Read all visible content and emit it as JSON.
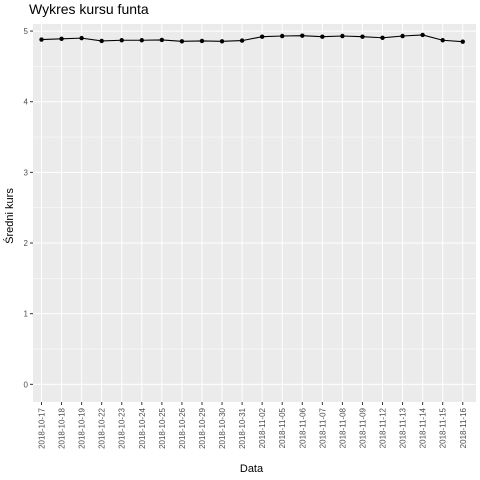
{
  "chart_data": {
    "type": "line",
    "title": "Wykres kursu funta",
    "xlabel": "Data",
    "ylabel": "Średni kurs",
    "ylim": [
      -0.25,
      5.1
    ],
    "yticks": [
      0,
      1,
      2,
      3,
      4,
      5
    ],
    "grid": true,
    "legend": "none",
    "colors": {
      "panel": "#ebebeb",
      "grid": "#ffffff",
      "line": "#000000"
    },
    "x": [
      "2018-10-17",
      "2018-10-18",
      "2018-10-19",
      "2018-10-22",
      "2018-10-23",
      "2018-10-24",
      "2018-10-25",
      "2018-10-26",
      "2018-10-29",
      "2018-10-30",
      "2018-10-31",
      "2018-11-02",
      "2018-11-05",
      "2018-11-06",
      "2018-11-07",
      "2018-11-08",
      "2018-11-09",
      "2018-11-12",
      "2018-11-13",
      "2018-11-14",
      "2018-11-15",
      "2018-11-16"
    ],
    "values": [
      4.88,
      4.89,
      4.9,
      4.86,
      4.87,
      4.87,
      4.875,
      4.855,
      4.86,
      4.855,
      4.865,
      4.92,
      4.93,
      4.935,
      4.92,
      4.93,
      4.92,
      4.905,
      4.93,
      4.945,
      4.87,
      4.85
    ]
  }
}
